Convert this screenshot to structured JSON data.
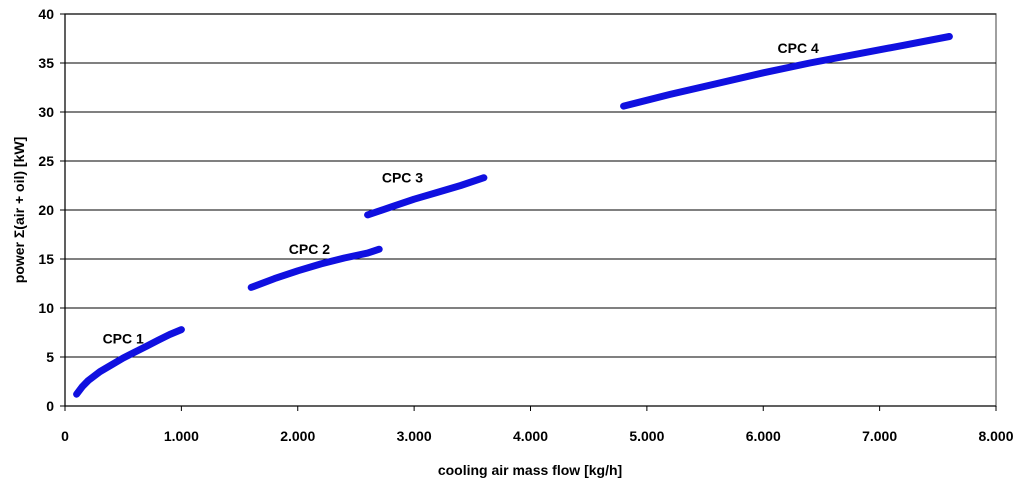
{
  "chart_data": {
    "type": "line",
    "xlabel": "cooling air mass flow [kg/h]",
    "ylabel": "power Σ(air + oil) [kW]",
    "xlim": [
      0,
      8000
    ],
    "ylim": [
      0,
      40
    ],
    "x_ticks": [
      0,
      1000,
      2000,
      3000,
      4000,
      5000,
      6000,
      7000,
      8000
    ],
    "x_tick_labels": [
      "0",
      "1.000",
      "2.000",
      "3.000",
      "4.000",
      "5.000",
      "6.000",
      "7.000",
      "8.000"
    ],
    "y_ticks": [
      0,
      5,
      10,
      15,
      20,
      25,
      30,
      35,
      40
    ],
    "y_tick_labels": [
      "0",
      "5",
      "10",
      "15",
      "20",
      "25",
      "30",
      "35",
      "40"
    ],
    "grid": "horizontal",
    "legend": "none",
    "line_color": "#1010e0",
    "series": [
      {
        "name": "CPC 1",
        "label_at": [
          500,
          6.4
        ],
        "points": [
          [
            100,
            1.2
          ],
          [
            150,
            2.0
          ],
          [
            200,
            2.6
          ],
          [
            300,
            3.5
          ],
          [
            400,
            4.2
          ],
          [
            500,
            4.9
          ],
          [
            600,
            5.5
          ],
          [
            700,
            6.1
          ],
          [
            800,
            6.7
          ],
          [
            900,
            7.3
          ],
          [
            1000,
            7.8
          ]
        ]
      },
      {
        "name": "CPC 2",
        "label_at": [
          2100,
          15.5
        ],
        "points": [
          [
            1600,
            12.1
          ],
          [
            1800,
            13.0
          ],
          [
            2000,
            13.8
          ],
          [
            2200,
            14.5
          ],
          [
            2400,
            15.1
          ],
          [
            2600,
            15.6
          ],
          [
            2700,
            16.0
          ]
        ]
      },
      {
        "name": "CPC 3",
        "label_at": [
          2900,
          22.8
        ],
        "points": [
          [
            2600,
            19.5
          ],
          [
            2800,
            20.3
          ],
          [
            3000,
            21.1
          ],
          [
            3200,
            21.8
          ],
          [
            3400,
            22.5
          ],
          [
            3600,
            23.3
          ]
        ]
      },
      {
        "name": "CPC 4",
        "label_at": [
          6300,
          36.0
        ],
        "points": [
          [
            4800,
            30.6
          ],
          [
            5200,
            31.8
          ],
          [
            5600,
            32.9
          ],
          [
            6000,
            34.0
          ],
          [
            6400,
            35.0
          ],
          [
            6800,
            35.9
          ],
          [
            7200,
            36.8
          ],
          [
            7600,
            37.7
          ]
        ]
      }
    ]
  }
}
